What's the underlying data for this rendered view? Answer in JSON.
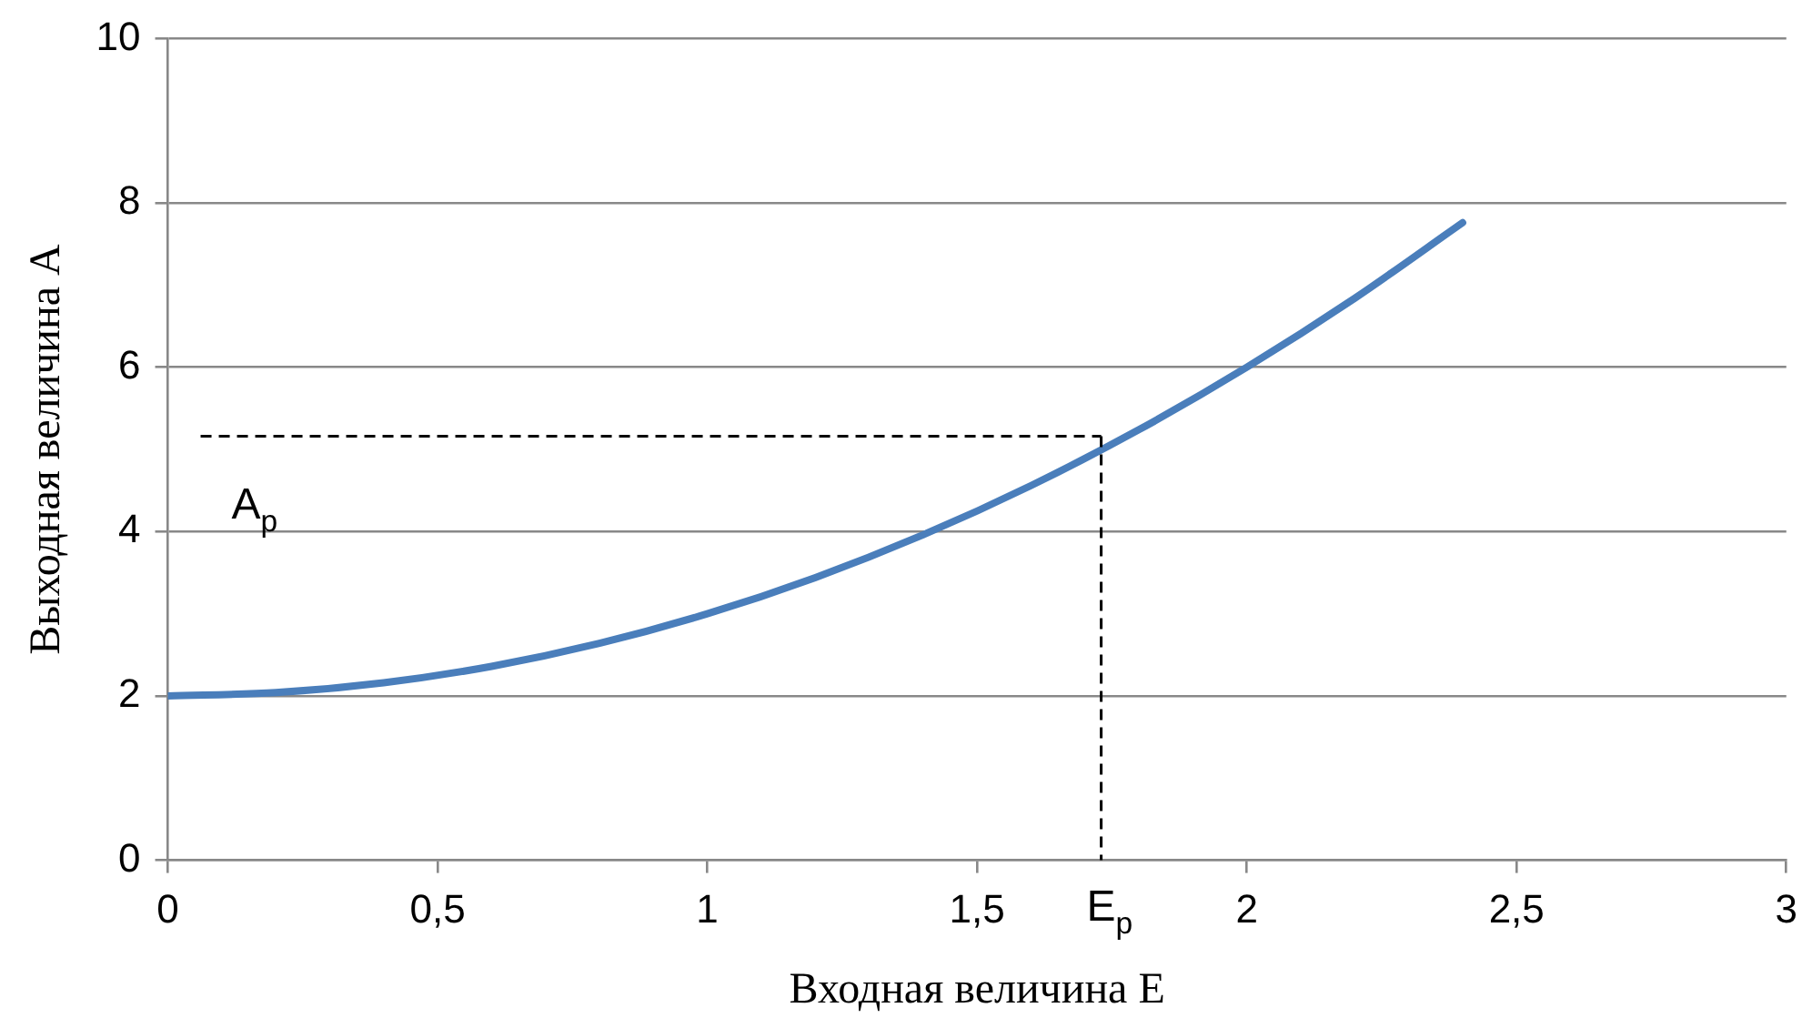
{
  "chart_data": {
    "type": "line",
    "xlabel": "Входная величина E",
    "ylabel": "Выходная величина A",
    "x": [
      0,
      0.2,
      0.4,
      0.6,
      0.8,
      1,
      1.2,
      1.4,
      1.6,
      1.8,
      2,
      2.2,
      2.4
    ],
    "series": [
      {
        "color": "#4a7ebb",
        "values": [
          2,
          2.04,
          2.16,
          2.36,
          2.64,
          3,
          3.44,
          3.96,
          4.56,
          5.24,
          6,
          6.84,
          7.76
        ]
      }
    ],
    "xlim": [
      0,
      3
    ],
    "xticks": [
      0,
      {
        "value": 0.5,
        "label": "0,5"
      },
      1,
      {
        "value": 1.5,
        "label": "1,5"
      },
      2,
      {
        "value": 2.5,
        "label": "2,5"
      },
      3
    ],
    "ylim": [
      0,
      10
    ],
    "yticks": [
      0,
      2,
      4,
      6,
      8,
      10
    ],
    "ref_lines": [
      {
        "axis": "y",
        "value": 5.16,
        "label": "A$_{p}$",
        "color": "#000000",
        "line_style": "dashed"
      },
      {
        "axis": "x",
        "value": 1.73,
        "label": "E$_{p}$",
        "color": "#000000",
        "line_style": "dashed"
      }
    ],
    "grid": "y",
    "legend": false,
    "marker": "none",
    "line_style": "solid"
  }
}
